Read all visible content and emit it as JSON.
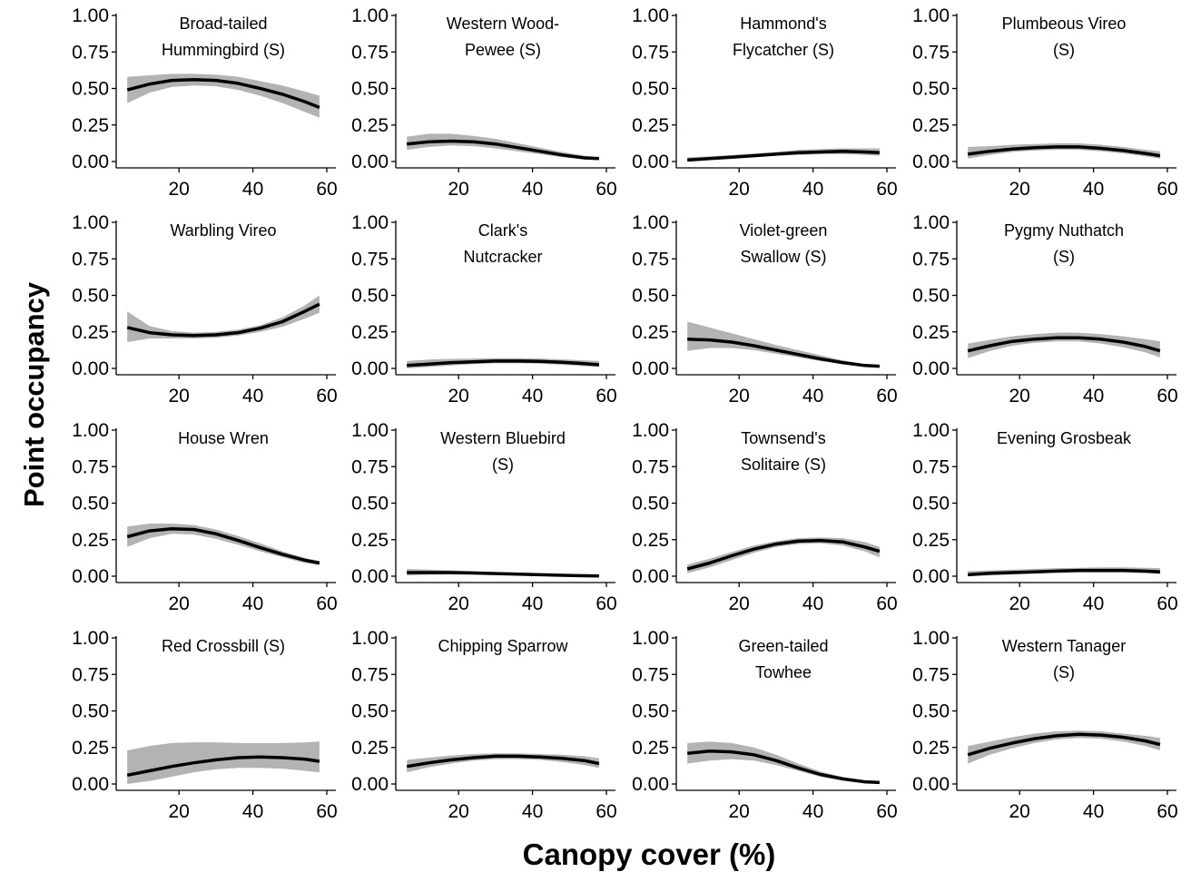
{
  "figure": {
    "ylabel": "Point occupancy",
    "xlabel": "Canopy cover (%)"
  },
  "chart_data": {
    "type": "line",
    "xlabel": "Canopy cover (%)",
    "ylabel": "Point occupancy",
    "xlim": [
      3,
      60
    ],
    "ylim": [
      0,
      1
    ],
    "x_ticks": [
      20,
      40,
      60
    ],
    "y_ticks": [
      "0.00",
      "0.25",
      "0.50",
      "0.75",
      "1.00"
    ],
    "x": [
      6,
      12,
      18,
      24,
      30,
      36,
      42,
      48,
      54,
      58
    ],
    "colors": {
      "line": "#000000",
      "band": "#b3b3b3"
    },
    "grid": false,
    "panels": [
      {
        "title": [
          "Broad-tailed",
          "Hummingbird (S)"
        ],
        "y": [
          0.49,
          0.53,
          0.555,
          0.56,
          0.555,
          0.535,
          0.5,
          0.46,
          0.41,
          0.37
        ],
        "lower": [
          0.4,
          0.47,
          0.51,
          0.52,
          0.515,
          0.49,
          0.45,
          0.4,
          0.34,
          0.3
        ],
        "upper": [
          0.58,
          0.59,
          0.6,
          0.6,
          0.595,
          0.58,
          0.55,
          0.52,
          0.48,
          0.45
        ]
      },
      {
        "title": [
          "Western Wood-",
          "Pewee (S)"
        ],
        "y": [
          0.12,
          0.135,
          0.14,
          0.135,
          0.12,
          0.095,
          0.07,
          0.045,
          0.025,
          0.02
        ],
        "lower": [
          0.08,
          0.1,
          0.11,
          0.105,
          0.09,
          0.07,
          0.05,
          0.03,
          0.015,
          0.01
        ],
        "upper": [
          0.17,
          0.19,
          0.19,
          0.175,
          0.155,
          0.125,
          0.095,
          0.065,
          0.04,
          0.03
        ]
      },
      {
        "title": [
          "Hammond's",
          "Flycatcher (S)"
        ],
        "y": [
          0.01,
          0.02,
          0.03,
          0.04,
          0.05,
          0.06,
          0.065,
          0.07,
          0.065,
          0.06
        ],
        "lower": [
          0.0,
          0.01,
          0.02,
          0.03,
          0.04,
          0.045,
          0.05,
          0.05,
          0.045,
          0.04
        ],
        "upper": [
          0.03,
          0.035,
          0.045,
          0.055,
          0.065,
          0.08,
          0.085,
          0.09,
          0.09,
          0.09
        ]
      },
      {
        "title": [
          "Plumbeous Vireo",
          "(S)"
        ],
        "y": [
          0.05,
          0.07,
          0.085,
          0.095,
          0.1,
          0.1,
          0.09,
          0.075,
          0.055,
          0.04
        ],
        "lower": [
          0.02,
          0.045,
          0.065,
          0.075,
          0.08,
          0.08,
          0.07,
          0.055,
          0.035,
          0.02
        ],
        "upper": [
          0.1,
          0.105,
          0.115,
          0.12,
          0.125,
          0.125,
          0.115,
          0.1,
          0.08,
          0.07
        ]
      },
      {
        "title": [
          "Warbling Vireo"
        ],
        "y": [
          0.28,
          0.245,
          0.23,
          0.225,
          0.23,
          0.245,
          0.275,
          0.32,
          0.39,
          0.44
        ],
        "lower": [
          0.18,
          0.205,
          0.205,
          0.205,
          0.21,
          0.225,
          0.25,
          0.285,
          0.34,
          0.38
        ],
        "upper": [
          0.39,
          0.29,
          0.255,
          0.245,
          0.25,
          0.265,
          0.295,
          0.35,
          0.43,
          0.5
        ]
      },
      {
        "title": [
          "Clark's",
          "Nutcracker"
        ],
        "y": [
          0.02,
          0.03,
          0.04,
          0.045,
          0.05,
          0.05,
          0.048,
          0.042,
          0.033,
          0.025
        ],
        "lower": [
          0.0,
          0.01,
          0.02,
          0.03,
          0.035,
          0.035,
          0.032,
          0.025,
          0.015,
          0.01
        ],
        "upper": [
          0.05,
          0.06,
          0.065,
          0.068,
          0.07,
          0.07,
          0.068,
          0.062,
          0.055,
          0.05
        ]
      },
      {
        "title": [
          "Violet-green",
          "Swallow (S)"
        ],
        "y": [
          0.2,
          0.195,
          0.18,
          0.155,
          0.125,
          0.095,
          0.065,
          0.04,
          0.02,
          0.015
        ],
        "lower": [
          0.12,
          0.14,
          0.14,
          0.125,
          0.1,
          0.075,
          0.05,
          0.03,
          0.012,
          0.005
        ],
        "upper": [
          0.32,
          0.28,
          0.24,
          0.2,
          0.16,
          0.125,
          0.09,
          0.055,
          0.03,
          0.025
        ]
      },
      {
        "title": [
          "Pygmy Nuthatch",
          "(S)"
        ],
        "y": [
          0.12,
          0.155,
          0.185,
          0.2,
          0.21,
          0.21,
          0.2,
          0.18,
          0.15,
          0.12
        ],
        "lower": [
          0.07,
          0.12,
          0.155,
          0.175,
          0.185,
          0.185,
          0.17,
          0.145,
          0.11,
          0.075
        ],
        "upper": [
          0.17,
          0.195,
          0.22,
          0.235,
          0.245,
          0.245,
          0.235,
          0.22,
          0.2,
          0.185
        ]
      },
      {
        "title": [
          "House Wren"
        ],
        "y": [
          0.27,
          0.31,
          0.325,
          0.32,
          0.29,
          0.245,
          0.195,
          0.15,
          0.11,
          0.09
        ],
        "lower": [
          0.2,
          0.26,
          0.29,
          0.285,
          0.255,
          0.215,
          0.17,
          0.13,
          0.09,
          0.075
        ],
        "upper": [
          0.34,
          0.36,
          0.36,
          0.35,
          0.32,
          0.275,
          0.225,
          0.17,
          0.125,
          0.105
        ]
      },
      {
        "title": [
          "Western Bluebird",
          "(S)"
        ],
        "y": [
          0.025,
          0.025,
          0.025,
          0.022,
          0.018,
          0.014,
          0.01,
          0.006,
          0.003,
          0.002
        ],
        "lower": [
          0.005,
          0.01,
          0.012,
          0.012,
          0.01,
          0.008,
          0.004,
          0.001,
          0.0,
          0.0
        ],
        "upper": [
          0.05,
          0.045,
          0.04,
          0.035,
          0.03,
          0.025,
          0.018,
          0.012,
          0.008,
          0.006
        ]
      },
      {
        "title": [
          "Townsend's",
          "Solitaire (S)"
        ],
        "y": [
          0.05,
          0.09,
          0.14,
          0.185,
          0.22,
          0.24,
          0.245,
          0.235,
          0.2,
          0.17
        ],
        "lower": [
          0.02,
          0.06,
          0.11,
          0.16,
          0.2,
          0.22,
          0.225,
          0.21,
          0.17,
          0.13
        ],
        "upper": [
          0.08,
          0.12,
          0.165,
          0.21,
          0.24,
          0.26,
          0.265,
          0.26,
          0.235,
          0.2
        ]
      },
      {
        "title": [
          "Evening Grosbeak"
        ],
        "y": [
          0.01,
          0.02,
          0.025,
          0.03,
          0.035,
          0.04,
          0.04,
          0.04,
          0.035,
          0.03
        ],
        "lower": [
          0.0,
          0.005,
          0.012,
          0.018,
          0.023,
          0.025,
          0.025,
          0.025,
          0.02,
          0.015
        ],
        "upper": [
          0.035,
          0.04,
          0.045,
          0.05,
          0.055,
          0.058,
          0.06,
          0.06,
          0.058,
          0.055
        ]
      },
      {
        "title": [
          "Red Crossbill (S)"
        ],
        "y": [
          0.06,
          0.09,
          0.12,
          0.145,
          0.165,
          0.18,
          0.185,
          0.18,
          0.17,
          0.155
        ],
        "lower": [
          0.0,
          0.02,
          0.05,
          0.08,
          0.1,
          0.11,
          0.11,
          0.105,
          0.09,
          0.08
        ],
        "upper": [
          0.23,
          0.26,
          0.28,
          0.285,
          0.285,
          0.28,
          0.28,
          0.28,
          0.285,
          0.29
        ]
      },
      {
        "title": [
          "Chipping Sparrow"
        ],
        "y": [
          0.12,
          0.145,
          0.165,
          0.18,
          0.19,
          0.19,
          0.185,
          0.175,
          0.16,
          0.14
        ],
        "lower": [
          0.08,
          0.115,
          0.14,
          0.16,
          0.17,
          0.17,
          0.165,
          0.15,
          0.13,
          0.11
        ],
        "upper": [
          0.165,
          0.18,
          0.195,
          0.205,
          0.21,
          0.21,
          0.205,
          0.2,
          0.19,
          0.175
        ]
      },
      {
        "title": [
          "Green-tailed",
          "Towhee"
        ],
        "y": [
          0.21,
          0.225,
          0.22,
          0.2,
          0.16,
          0.11,
          0.065,
          0.035,
          0.015,
          0.01
        ],
        "lower": [
          0.14,
          0.16,
          0.17,
          0.16,
          0.13,
          0.09,
          0.05,
          0.025,
          0.008,
          0.004
        ],
        "upper": [
          0.28,
          0.29,
          0.28,
          0.25,
          0.2,
          0.14,
          0.085,
          0.048,
          0.025,
          0.018
        ]
      },
      {
        "title": [
          "Western Tanager",
          "(S)"
        ],
        "y": [
          0.2,
          0.245,
          0.28,
          0.31,
          0.33,
          0.34,
          0.335,
          0.32,
          0.295,
          0.27
        ],
        "lower": [
          0.14,
          0.2,
          0.245,
          0.28,
          0.305,
          0.315,
          0.31,
          0.29,
          0.26,
          0.23
        ],
        "upper": [
          0.26,
          0.29,
          0.32,
          0.345,
          0.36,
          0.365,
          0.36,
          0.345,
          0.33,
          0.315
        ]
      }
    ]
  }
}
